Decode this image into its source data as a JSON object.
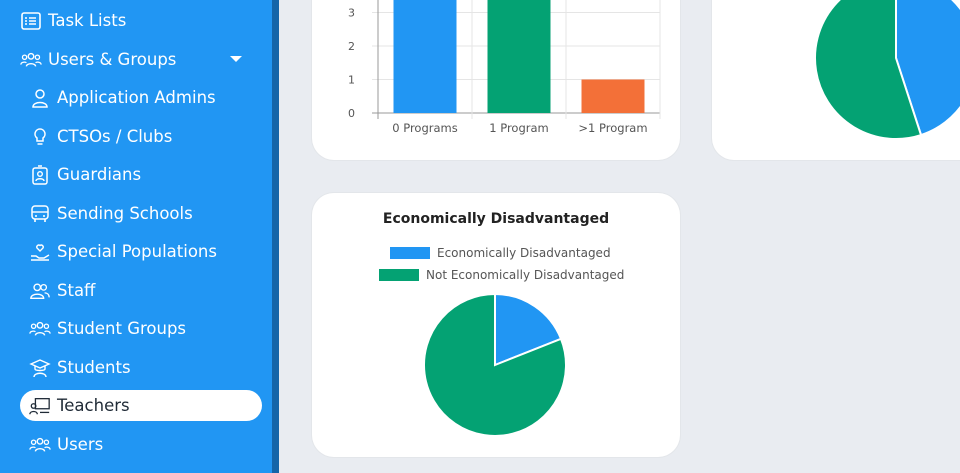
{
  "sidebar": {
    "items": [
      {
        "label": "Task Lists",
        "icon": "list-icon"
      },
      {
        "label": "Users & Groups",
        "icon": "users-group-icon"
      },
      {
        "label": "Application Admins",
        "icon": "user-icon"
      },
      {
        "label": "CTSOs / Clubs",
        "icon": "lightbulb-icon"
      },
      {
        "label": "Guardians",
        "icon": "id-badge-icon"
      },
      {
        "label": "Sending Schools",
        "icon": "bus-icon"
      },
      {
        "label": "Special Populations",
        "icon": "hand-heart-icon"
      },
      {
        "label": "Staff",
        "icon": "users-icon"
      },
      {
        "label": "Student Groups",
        "icon": "users-group-icon"
      },
      {
        "label": "Students",
        "icon": "graduation-icon"
      },
      {
        "label": "Teachers",
        "icon": "teacher-board-icon"
      },
      {
        "label": "Users",
        "icon": "users-group-icon"
      }
    ],
    "active": "Teachers"
  },
  "colors": {
    "sidebar": "#2196f3",
    "blue": "#2196f3",
    "green": "#04a273",
    "orange": "#f37038"
  },
  "chart_data": [
    {
      "type": "bar",
      "title": "",
      "categories": [
        "0 Programs",
        "1 Program",
        ">1 Program"
      ],
      "values": [
        4.2,
        4.2,
        1
      ],
      "y_ticks": [
        "0",
        "1",
        "2",
        "3"
      ],
      "colors": [
        "#2196f3",
        "#04a273",
        "#f37038"
      ]
    },
    {
      "type": "pie",
      "title": "",
      "series": [
        {
          "values": [
            45,
            55
          ]
        }
      ],
      "colors": [
        "#2196f3",
        "#04a273"
      ]
    },
    {
      "type": "pie",
      "title": "Economically Disadvantaged",
      "categories": [
        "Economically Disadvantaged",
        "Not Economically Disadvantaged"
      ],
      "values": [
        19,
        81
      ],
      "colors": [
        "#2196f3",
        "#04a273"
      ],
      "legend": "top"
    }
  ]
}
